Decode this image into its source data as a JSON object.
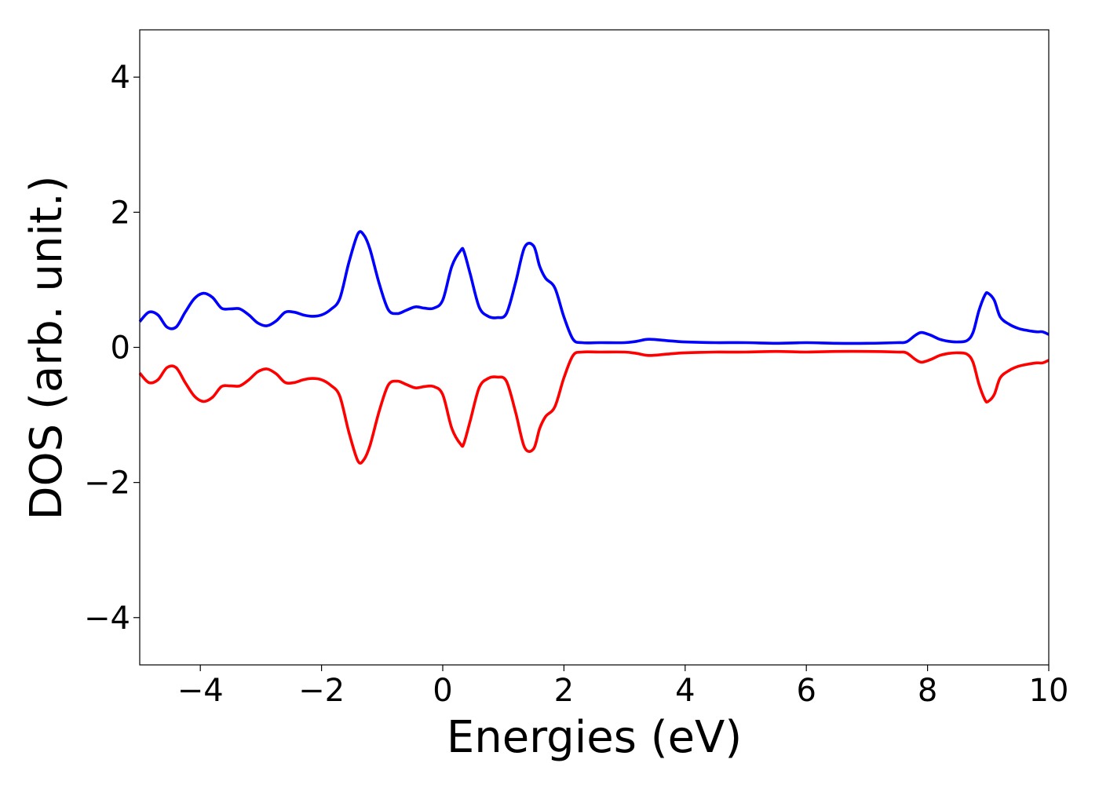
{
  "chart_data": {
    "type": "line",
    "title": "",
    "xlabel": "Energies (eV)",
    "ylabel": "DOS (arb. unit.)",
    "xlim": [
      -5,
      10
    ],
    "ylim": [
      -4.7,
      4.7
    ],
    "xticks": [
      -4,
      -2,
      0,
      2,
      4,
      6,
      8,
      10
    ],
    "xtick_labels": [
      "−4",
      "−2",
      "0",
      "2",
      "4",
      "6",
      "8",
      "10"
    ],
    "yticks": [
      -4,
      -2,
      0,
      2,
      4
    ],
    "ytick_labels": [
      "−4",
      "−2",
      "0",
      "2",
      "4"
    ],
    "grid": false,
    "legend": "none",
    "series": [
      {
        "color": "#0000ff",
        "x": [
          -5.0,
          -4.85,
          -4.7,
          -4.55,
          -4.4,
          -4.25,
          -4.1,
          -3.95,
          -3.8,
          -3.65,
          -3.5,
          -3.35,
          -3.2,
          -3.05,
          -2.9,
          -2.75,
          -2.6,
          -2.45,
          -2.3,
          -2.15,
          -2.0,
          -1.85,
          -1.7,
          -1.55,
          -1.4,
          -1.3,
          -1.2,
          -1.05,
          -0.9,
          -0.75,
          -0.6,
          -0.45,
          -0.3,
          -0.15,
          0.0,
          0.15,
          0.3,
          0.35,
          0.45,
          0.6,
          0.75,
          0.9,
          1.05,
          1.2,
          1.35,
          1.5,
          1.6,
          1.7,
          1.85,
          2.0,
          2.15,
          2.3,
          2.6,
          3.0,
          3.2,
          3.4,
          3.7,
          4.0,
          4.5,
          5.0,
          5.5,
          6.0,
          6.5,
          7.0,
          7.5,
          7.65,
          7.8,
          7.9,
          8.05,
          8.2,
          8.35,
          8.5,
          8.65,
          8.75,
          8.85,
          8.95,
          9.0,
          9.1,
          9.2,
          9.35,
          9.5,
          9.65,
          9.8,
          9.9,
          10.0
        ],
        "y": [
          0.38,
          0.52,
          0.48,
          0.3,
          0.3,
          0.52,
          0.72,
          0.8,
          0.74,
          0.58,
          0.57,
          0.57,
          0.48,
          0.36,
          0.32,
          0.39,
          0.52,
          0.52,
          0.48,
          0.46,
          0.48,
          0.56,
          0.72,
          1.25,
          1.68,
          1.66,
          1.45,
          0.95,
          0.56,
          0.5,
          0.55,
          0.6,
          0.58,
          0.58,
          0.7,
          1.2,
          1.44,
          1.42,
          1.1,
          0.6,
          0.46,
          0.44,
          0.5,
          0.95,
          1.48,
          1.5,
          1.2,
          1.02,
          0.88,
          0.45,
          0.12,
          0.07,
          0.07,
          0.07,
          0.09,
          0.12,
          0.1,
          0.08,
          0.07,
          0.07,
          0.06,
          0.07,
          0.06,
          0.06,
          0.07,
          0.08,
          0.18,
          0.22,
          0.18,
          0.12,
          0.09,
          0.08,
          0.1,
          0.22,
          0.55,
          0.78,
          0.8,
          0.7,
          0.45,
          0.34,
          0.28,
          0.25,
          0.23,
          0.23,
          0.19
        ]
      },
      {
        "color": "#ff0000",
        "x": [
          -5.0,
          -4.85,
          -4.7,
          -4.55,
          -4.4,
          -4.25,
          -4.1,
          -3.95,
          -3.8,
          -3.65,
          -3.5,
          -3.35,
          -3.2,
          -3.05,
          -2.9,
          -2.75,
          -2.6,
          -2.45,
          -2.3,
          -2.15,
          -2.0,
          -1.85,
          -1.7,
          -1.55,
          -1.4,
          -1.3,
          -1.2,
          -1.05,
          -0.9,
          -0.75,
          -0.6,
          -0.45,
          -0.3,
          -0.15,
          0.0,
          0.15,
          0.3,
          0.35,
          0.45,
          0.6,
          0.75,
          0.9,
          1.05,
          1.2,
          1.35,
          1.5,
          1.6,
          1.7,
          1.85,
          2.0,
          2.15,
          2.3,
          2.6,
          3.0,
          3.2,
          3.4,
          3.7,
          4.0,
          4.5,
          5.0,
          5.5,
          6.0,
          6.5,
          7.0,
          7.5,
          7.65,
          7.8,
          7.9,
          8.05,
          8.2,
          8.35,
          8.5,
          8.65,
          8.75,
          8.85,
          8.95,
          9.0,
          9.1,
          9.2,
          9.35,
          9.5,
          9.65,
          9.8,
          9.9,
          10.0
        ],
        "y": [
          -0.38,
          -0.52,
          -0.48,
          -0.3,
          -0.3,
          -0.52,
          -0.72,
          -0.8,
          -0.74,
          -0.58,
          -0.57,
          -0.57,
          -0.48,
          -0.36,
          -0.32,
          -0.39,
          -0.52,
          -0.52,
          -0.48,
          -0.46,
          -0.48,
          -0.56,
          -0.72,
          -1.25,
          -1.68,
          -1.66,
          -1.45,
          -0.95,
          -0.56,
          -0.5,
          -0.55,
          -0.6,
          -0.58,
          -0.58,
          -0.7,
          -1.2,
          -1.44,
          -1.42,
          -1.1,
          -0.6,
          -0.46,
          -0.44,
          -0.5,
          -0.95,
          -1.48,
          -1.5,
          -1.2,
          -1.02,
          -0.88,
          -0.45,
          -0.12,
          -0.07,
          -0.07,
          -0.07,
          -0.09,
          -0.12,
          -0.1,
          -0.08,
          -0.07,
          -0.07,
          -0.06,
          -0.07,
          -0.06,
          -0.06,
          -0.07,
          -0.08,
          -0.18,
          -0.22,
          -0.18,
          -0.12,
          -0.09,
          -0.08,
          -0.1,
          -0.22,
          -0.55,
          -0.78,
          -0.8,
          -0.7,
          -0.45,
          -0.34,
          -0.28,
          -0.25,
          -0.23,
          -0.23,
          -0.19
        ]
      }
    ]
  }
}
